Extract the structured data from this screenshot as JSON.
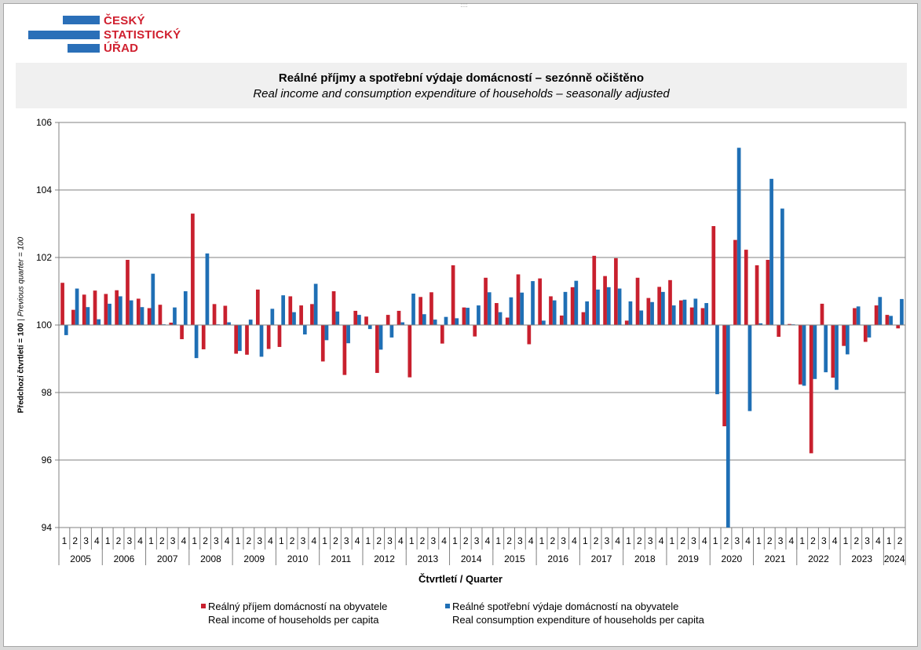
{
  "logo": {
    "line1": "ČESKÝ",
    "line2": "STATISTICKÝ",
    "line3": "ÚŘAD",
    "bar_color": "#2a6fb8",
    "text_color": "#d0202f"
  },
  "title": {
    "cz": "Reálné příjmy a spotřební výdaje domácností – sezónně očištěno",
    "en": "Real income and consumption expenditure of households – seasonally adjusted"
  },
  "axes": {
    "ylabel_cz": "Předchozí čtvrtletí = 100",
    "ylabel_sep": " | ",
    "ylabel_en": "Previous quarter = 100",
    "xlabel": "Čtvrtletí / Quarter"
  },
  "legend": {
    "income": {
      "cz": "Reálný příjem domácností na obyvatele",
      "en": "Real income of households per capita"
    },
    "consumption": {
      "cz": "Reálné spotřební výdaje domácností na obyvatele",
      "en": "Real consumption expenditure of households per capita"
    }
  },
  "chart_data": {
    "type": "bar",
    "ylim": [
      94,
      106
    ],
    "yticks": [
      94,
      96,
      98,
      100,
      102,
      104,
      106
    ],
    "baseline": 100,
    "grid": true,
    "legend_position": "bottom",
    "years": [
      "2005",
      "2006",
      "2007",
      "2008",
      "2009",
      "2010",
      "2011",
      "2012",
      "2013",
      "2014",
      "2015",
      "2016",
      "2017",
      "2018",
      "2019",
      "2020",
      "2021",
      "2022",
      "2023",
      "2024"
    ],
    "quarter_labels": [
      "1",
      "2",
      "3",
      "4"
    ],
    "series": [
      {
        "name": "Reálný příjem domácností na obyvatele / Real income of households per capita",
        "color": "#c8202e",
        "values": [
          101.25,
          100.45,
          100.9,
          101.02,
          100.92,
          101.03,
          101.93,
          100.78,
          100.5,
          100.6,
          100.07,
          99.58,
          103.3,
          99.28,
          100.62,
          100.57,
          99.15,
          99.12,
          101.05,
          99.29,
          99.35,
          100.85,
          100.58,
          100.62,
          98.92,
          101.0,
          98.52,
          100.42,
          100.25,
          98.58,
          100.3,
          100.42,
          98.45,
          100.83,
          100.97,
          99.45,
          101.77,
          100.52,
          99.66,
          101.4,
          100.65,
          100.22,
          101.5,
          99.43,
          101.38,
          100.85,
          100.28,
          101.12,
          100.38,
          102.05,
          101.45,
          101.98,
          100.13,
          101.4,
          100.8,
          101.13,
          101.33,
          100.73,
          100.52,
          100.5,
          102.93,
          97.0,
          102.52,
          102.23,
          101.77,
          101.93,
          99.65,
          100.03,
          98.24,
          96.2,
          100.63,
          98.44,
          99.38,
          100.5,
          99.5,
          100.58,
          100.3,
          99.9
        ]
      },
      {
        "name": "Reálné spotřební výdaje domácností na obyvatele / Real consumption expenditure of households per capita",
        "color": "#1f6fb5",
        "values": [
          99.7,
          101.08,
          100.53,
          100.17,
          100.63,
          100.85,
          100.73,
          100.53,
          101.52,
          100.02,
          100.52,
          101.0,
          99.02,
          102.12,
          100.02,
          100.08,
          99.23,
          100.16,
          99.06,
          100.48,
          100.88,
          100.38,
          99.72,
          101.22,
          99.55,
          100.4,
          99.46,
          100.3,
          99.88,
          99.27,
          99.63,
          100.08,
          100.93,
          100.32,
          100.16,
          100.24,
          100.2,
          100.51,
          100.58,
          100.97,
          100.38,
          100.82,
          100.96,
          101.3,
          100.13,
          100.73,
          100.98,
          101.31,
          100.7,
          101.05,
          101.12,
          101.08,
          100.7,
          100.43,
          100.68,
          100.98,
          100.58,
          100.75,
          100.78,
          100.65,
          97.95,
          94.0,
          105.25,
          97.45,
          100.05,
          104.33,
          103.45,
          100.02,
          98.2,
          98.4,
          98.6,
          98.08,
          99.13,
          100.55,
          99.63,
          100.83,
          100.27,
          100.77
        ]
      }
    ]
  }
}
